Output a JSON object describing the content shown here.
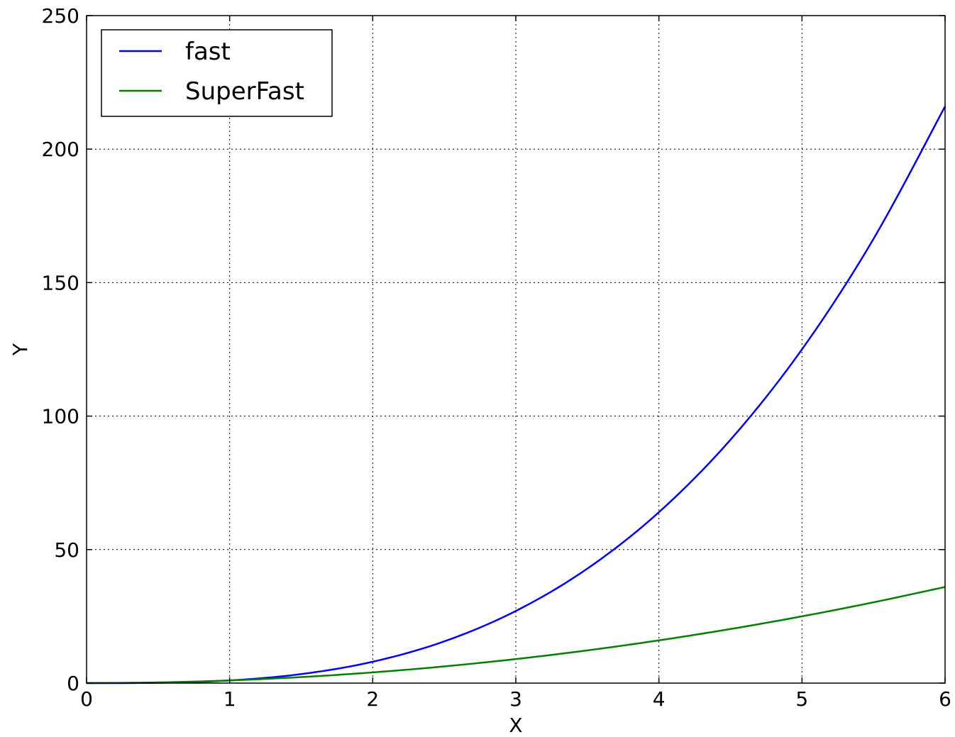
{
  "chart_data": {
    "type": "line",
    "xlabel": "X",
    "ylabel": "Y",
    "xlim": [
      0,
      6
    ],
    "ylim": [
      0,
      250
    ],
    "xticks": [
      0,
      1,
      2,
      3,
      4,
      5,
      6
    ],
    "yticks": [
      0,
      50,
      100,
      150,
      200,
      250
    ],
    "xtick_labels": [
      "0",
      "1",
      "2",
      "3",
      "4",
      "5",
      "6"
    ],
    "ytick_labels": [
      "0",
      "50",
      "100",
      "150",
      "200",
      "250"
    ],
    "grid": true,
    "legend_position": "top-left",
    "series": [
      {
        "name": "fast",
        "color": "#0000ff",
        "x": [
          0,
          0.5,
          1,
          1.5,
          2,
          2.5,
          3,
          3.5,
          4,
          4.5,
          5,
          5.5,
          6
        ],
        "y": [
          0,
          0.125,
          1,
          3.375,
          8,
          15.625,
          27,
          42.875,
          64,
          91.125,
          125,
          166.375,
          216
        ]
      },
      {
        "name": "SuperFast",
        "color": "#008000",
        "x": [
          0,
          0.5,
          1,
          1.5,
          2,
          2.5,
          3,
          3.5,
          4,
          4.5,
          5,
          5.5,
          6
        ],
        "y": [
          0,
          0.25,
          1,
          2.25,
          4,
          6.25,
          9,
          12.25,
          16,
          20.25,
          25,
          30.25,
          36
        ]
      }
    ]
  }
}
